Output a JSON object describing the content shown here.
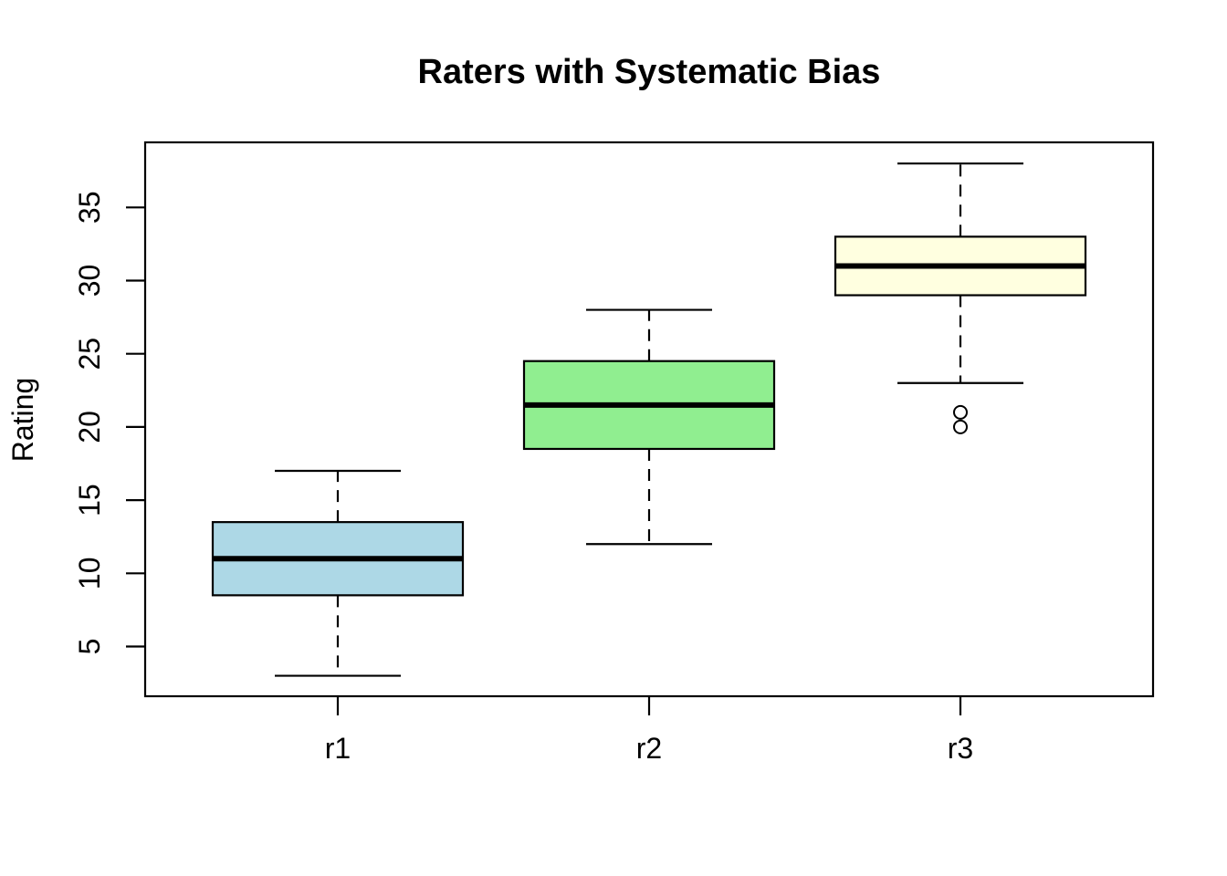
{
  "title": "Raters with Systematic Bias",
  "chart_data": {
    "type": "boxplot",
    "title": "Raters with Systematic Bias",
    "xlabel": "",
    "ylabel": "Rating",
    "ylim": [
      2,
      39
    ],
    "yticks": [
      5,
      10,
      15,
      20,
      25,
      30,
      35
    ],
    "categories": [
      "r1",
      "r2",
      "r3"
    ],
    "grid": false,
    "legend": "none",
    "series": [
      {
        "name": "r1",
        "whisker_low": 3,
        "q1": 8.5,
        "median": 11,
        "q3": 13.5,
        "whisker_high": 17,
        "outliers": [],
        "fill_color": "#ADD8E6"
      },
      {
        "name": "r2",
        "whisker_low": 12,
        "q1": 18.5,
        "median": 21.5,
        "q3": 24.5,
        "whisker_high": 28,
        "outliers": [],
        "fill_color": "#90EE90"
      },
      {
        "name": "r3",
        "whisker_low": 23,
        "q1": 29,
        "median": 31,
        "q3": 33,
        "whisker_high": 38,
        "outliers": [
          21,
          20
        ],
        "fill_color": "#FFFFE0"
      }
    ],
    "colors": {
      "stroke": "#000000",
      "background": "#FFFFFF"
    }
  }
}
